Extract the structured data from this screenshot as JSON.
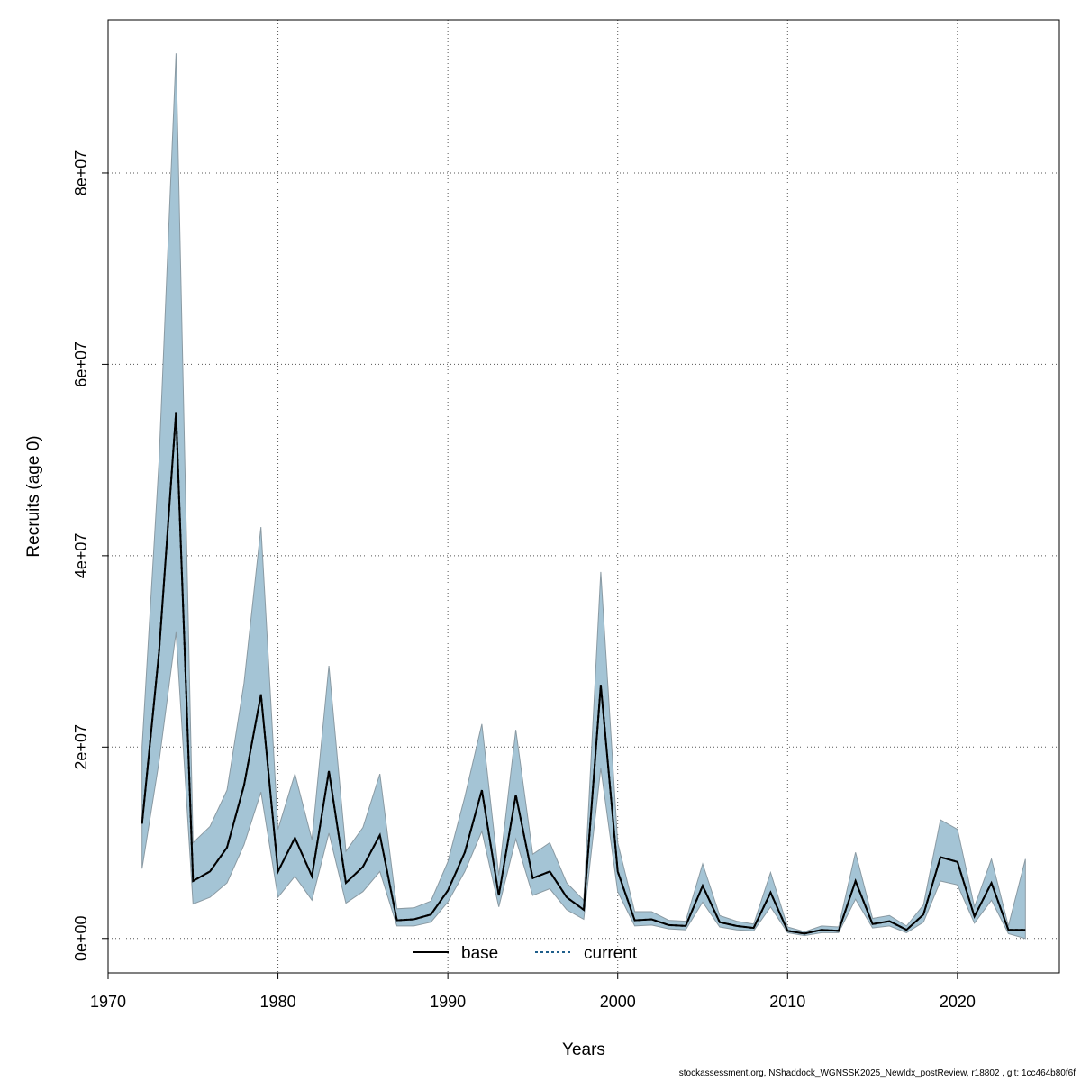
{
  "chart_data": {
    "type": "line",
    "title": "",
    "xlabel": "Years",
    "ylabel": "Recruits (age 0)",
    "xlim": [
      1970,
      2026
    ],
    "ylim": [
      -3600000,
      96000000
    ],
    "x_ticks": [
      1970,
      1980,
      1990,
      2000,
      2010,
      2020
    ],
    "x_tick_labels": [
      "1970",
      "1980",
      "1990",
      "2000",
      "2010",
      "2020"
    ],
    "y_ticks": [
      0,
      20000000,
      40000000,
      60000000,
      80000000
    ],
    "y_tick_labels": [
      "0e+00",
      "2e+07",
      "4e+07",
      "6e+07",
      "8e+07"
    ],
    "grid": true,
    "legend_position": "bottom-center",
    "colors": {
      "band": "#a4c4d5",
      "band_edge": "#8a9aa3",
      "current_line": "#1f5f8b",
      "base_line": "#000000",
      "grid": "#555555"
    },
    "x": [
      1972,
      1973,
      1974,
      1975,
      1976,
      1977,
      1978,
      1979,
      1980,
      1981,
      1982,
      1983,
      1984,
      1985,
      1986,
      1987,
      1988,
      1989,
      1990,
      1991,
      1992,
      1993,
      1994,
      1995,
      1996,
      1997,
      1998,
      1999,
      2000,
      2001,
      2002,
      2003,
      2004,
      2005,
      2006,
      2007,
      2008,
      2009,
      2010,
      2011,
      2012,
      2013,
      2014,
      2015,
      2016,
      2017,
      2018,
      2019,
      2020,
      2021,
      2022,
      2023,
      2024
    ],
    "series": [
      {
        "name": "base",
        "line_style": "solid",
        "values": [
          12000000,
          30000000,
          55000000,
          6000000,
          7000000,
          9500000,
          16000000,
          25500000,
          7000000,
          10500000,
          6500000,
          17500000,
          5800000,
          7500000,
          10800000,
          1900000,
          2000000,
          2500000,
          5000000,
          9000000,
          15500000,
          4500000,
          15000000,
          6300000,
          7000000,
          4300000,
          3000000,
          26500000,
          7000000,
          1900000,
          2000000,
          1400000,
          1300000,
          5500000,
          1700000,
          1300000,
          1100000,
          4800000,
          800000,
          500000,
          900000,
          800000,
          6000000,
          1500000,
          1800000,
          900000,
          2500000,
          8500000,
          8000000,
          2300000,
          5800000,
          900000,
          900000
        ]
      },
      {
        "name": "current",
        "line_style": "dotted",
        "values": [
          12000000,
          30000000,
          55000000,
          6000000,
          7000000,
          9500000,
          16000000,
          25500000,
          7000000,
          10500000,
          6500000,
          17500000,
          5800000,
          7500000,
          10800000,
          1900000,
          2000000,
          2500000,
          5000000,
          9000000,
          15500000,
          4500000,
          15000000,
          6300000,
          7000000,
          4300000,
          3000000,
          26500000,
          7000000,
          1900000,
          2000000,
          1400000,
          1300000,
          5500000,
          1700000,
          1300000,
          1100000,
          4800000,
          800000,
          500000,
          900000,
          800000,
          6000000,
          1500000,
          1800000,
          900000,
          2500000,
          8500000,
          8000000,
          2300000,
          5800000,
          900000,
          900000
        ]
      }
    ],
    "band_lower": [
      7300000,
      18500000,
      32000000,
      3600000,
      4300000,
      5800000,
      9800000,
      15300000,
      4300000,
      6500000,
      4000000,
      11000000,
      3700000,
      4900000,
      7000000,
      1300000,
      1300000,
      1700000,
      3800000,
      7000000,
      11200000,
      3300000,
      10400000,
      4500000,
      5200000,
      3000000,
      2000000,
      17800000,
      4900000,
      1300000,
      1400000,
      1000000,
      900000,
      3800000,
      1200000,
      900000,
      800000,
      3300000,
      600000,
      300000,
      600000,
      600000,
      4100000,
      1100000,
      1300000,
      600000,
      1700000,
      6000000,
      5600000,
      1600000,
      4000000,
      500000,
      0
    ],
    "band_upper": [
      20000000,
      50000000,
      92500000,
      10000000,
      11700000,
      15500000,
      26700000,
      43000000,
      11400000,
      17200000,
      10300000,
      28500000,
      9100000,
      11600000,
      17200000,
      3100000,
      3200000,
      3900000,
      8000000,
      14800000,
      22400000,
      6600000,
      21800000,
      8800000,
      10000000,
      5800000,
      4000000,
      38300000,
      10000000,
      2800000,
      2800000,
      1900000,
      1800000,
      7800000,
      2400000,
      1800000,
      1500000,
      6900000,
      1200000,
      700000,
      1300000,
      1200000,
      9000000,
      2100000,
      2400000,
      1300000,
      3500000,
      12400000,
      11400000,
      3300000,
      8300000,
      1300000,
      8300000
    ]
  },
  "footer": "stockassessment.org, NShaddock_WGNSSK2025_NewIdx_postReview, r18802 , git: 1cc464b80f6f"
}
